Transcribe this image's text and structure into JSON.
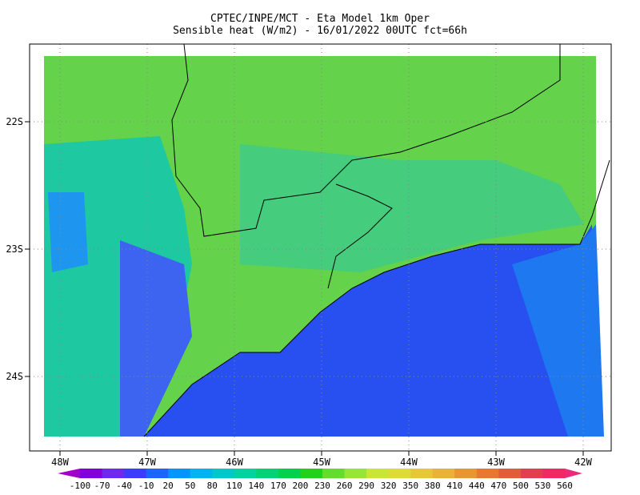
{
  "title": [
    "CPTEC/INPE/MCT -  Eta Model 1km Oper",
    "Sensible heat (W/m2) - 16/01/2022 00UTC fct=66h"
  ],
  "lat_ticks": [
    {
      "value": -22,
      "label": "22S"
    },
    {
      "value": -23,
      "label": "23S"
    },
    {
      "value": -24,
      "label": "24S"
    }
  ],
  "lon_ticks": [
    {
      "value": -48,
      "label": "48W"
    },
    {
      "value": -47,
      "label": "47W"
    },
    {
      "value": -46,
      "label": "46W"
    },
    {
      "value": -45,
      "label": "45W"
    },
    {
      "value": -44,
      "label": "44W"
    },
    {
      "value": -43,
      "label": "43W"
    },
    {
      "value": -42,
      "label": "42W"
    }
  ],
  "colorbar": {
    "labels": [
      -100,
      -70,
      -40,
      -10,
      20,
      50,
      80,
      110,
      140,
      170,
      200,
      230,
      260,
      290,
      320,
      350,
      380,
      410,
      440,
      470,
      500,
      530,
      560
    ],
    "colors": [
      "#a000c8",
      "#8200dc",
      "#6e28f0",
      "#3c3cff",
      "#1e64ff",
      "#0096ff",
      "#00b4f0",
      "#00c8c8",
      "#00d2a0",
      "#00d278",
      "#00d250",
      "#1ed21e",
      "#64dc28",
      "#96e632",
      "#c8e632",
      "#dcdc32",
      "#e6c832",
      "#e6b432",
      "#e69632",
      "#e67832",
      "#e65a3c",
      "#e63c50",
      "#f02864",
      "#f0287a"
    ]
  }
}
